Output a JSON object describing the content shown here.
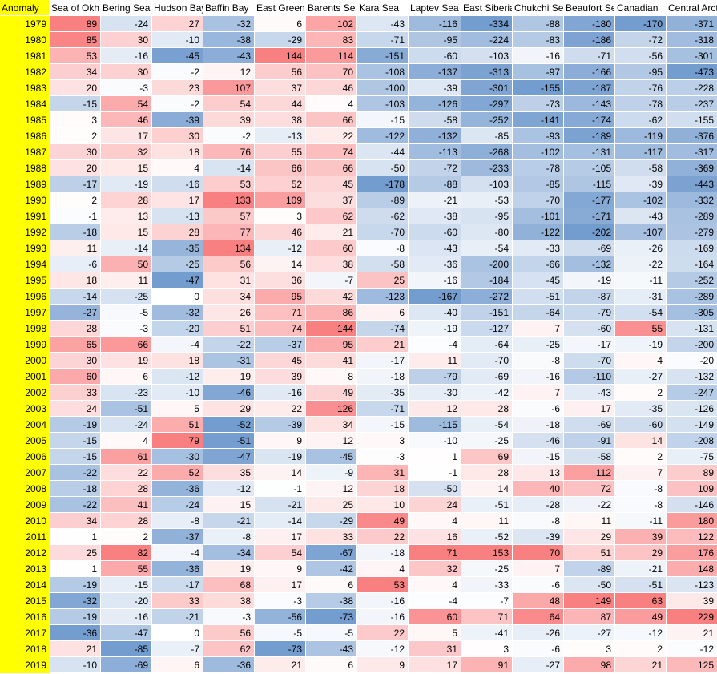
{
  "table": {
    "corner_label": "Anomaly",
    "columns": [
      "Sea of Okh",
      "Bering Sea",
      "Hudson Bay",
      "Baffin Bay",
      "East Greenland",
      "Barents Sea",
      "Kara Sea",
      "Laptev Sea",
      "East Siberian",
      "Chukchi Sea",
      "Beaufort Sea",
      "Canadian",
      "Central Arctic"
    ],
    "years": [
      "1979",
      "1980",
      "1981",
      "1982",
      "1983",
      "1984",
      "1985",
      "1986",
      "1987",
      "1988",
      "1989",
      "1990",
      "1991",
      "1992",
      "1993",
      "1994",
      "1995",
      "1996",
      "1997",
      "1998",
      "1999",
      "2000",
      "2001",
      "2002",
      "2003",
      "2004",
      "2005",
      "2006",
      "2007",
      "2008",
      "2009",
      "2010",
      "2011",
      "2012",
      "2013",
      "2014",
      "2015",
      "2016",
      "2017",
      "2018",
      "2019"
    ],
    "rows": [
      [
        89,
        -24,
        27,
        -32,
        6,
        102,
        -43,
        -116,
        -334,
        -88,
        -180,
        -170,
        -371
      ],
      [
        85,
        30,
        -10,
        -38,
        -29,
        83,
        -71,
        -95,
        -224,
        -83,
        -186,
        -72,
        -318
      ],
      [
        53,
        -16,
        -45,
        -43,
        144,
        114,
        -151,
        -60,
        -103,
        -16,
        -71,
        -56,
        -301
      ],
      [
        34,
        30,
        -2,
        12,
        56,
        70,
        -108,
        -137,
        -313,
        -97,
        -166,
        -95,
        -473
      ],
      [
        20,
        -3,
        23,
        107,
        37,
        46,
        -100,
        -39,
        -301,
        -155,
        -187,
        -76,
        -228
      ],
      [
        -15,
        54,
        -2,
        54,
        44,
        4,
        -103,
        -126,
        -297,
        -73,
        -143,
        -78,
        -237
      ],
      [
        3,
        46,
        -39,
        39,
        38,
        66,
        -15,
        -58,
        -252,
        -141,
        -174,
        -62,
        -155
      ],
      [
        2,
        17,
        30,
        -2,
        -13,
        22,
        -122,
        -132,
        -85,
        -93,
        -189,
        -119,
        -376
      ],
      [
        30,
        32,
        18,
        76,
        55,
        74,
        -44,
        -113,
        -268,
        -102,
        -131,
        -117,
        -317
      ],
      [
        20,
        15,
        4,
        -14,
        66,
        66,
        -50,
        -72,
        -233,
        -78,
        -105,
        -58,
        -369
      ],
      [
        -17,
        -19,
        -16,
        53,
        52,
        45,
        -178,
        -88,
        -103,
        -85,
        -115,
        -39,
        -443
      ],
      [
        2,
        28,
        17,
        133,
        109,
        37,
        -89,
        -21,
        -53,
        -70,
        -177,
        -102,
        -332
      ],
      [
        -1,
        13,
        -13,
        57,
        3,
        62,
        -62,
        -38,
        -95,
        -101,
        -171,
        -43,
        -289
      ],
      [
        -18,
        15,
        28,
        77,
        46,
        21,
        -70,
        -60,
        -80,
        -122,
        -202,
        -107,
        -279
      ],
      [
        11,
        -14,
        -35,
        134,
        -12,
        60,
        -8,
        -43,
        -54,
        -33,
        -69,
        -26,
        -169
      ],
      [
        -6,
        50,
        -25,
        56,
        14,
        38,
        -58,
        -36,
        -200,
        -66,
        -132,
        -22,
        -164
      ],
      [
        18,
        11,
        -47,
        31,
        36,
        -7,
        25,
        -16,
        -184,
        -45,
        -19,
        -11,
        -252
      ],
      [
        -14,
        -25,
        0,
        34,
        95,
        42,
        -123,
        -167,
        -272,
        -51,
        -87,
        -31,
        -289
      ],
      [
        -27,
        -5,
        -32,
        26,
        71,
        86,
        6,
        -40,
        -151,
        -64,
        -79,
        -54,
        -305
      ],
      [
        28,
        -3,
        -20,
        51,
        74,
        144,
        -74,
        -19,
        -127,
        7,
        -60,
        55,
        -131
      ],
      [
        65,
        66,
        -4,
        -22,
        -37,
        95,
        21,
        -4,
        -64,
        -25,
        -17,
        -19,
        -200
      ],
      [
        30,
        19,
        18,
        -31,
        45,
        41,
        -17,
        11,
        -70,
        -8,
        -70,
        4,
        -20
      ],
      [
        60,
        6,
        -12,
        19,
        39,
        8,
        -18,
        -79,
        -69,
        -16,
        -110,
        -27,
        -132
      ],
      [
        33,
        -23,
        -10,
        -46,
        -16,
        49,
        -35,
        -30,
        -42,
        7,
        -43,
        2,
        -247
      ],
      [
        24,
        -51,
        5,
        29,
        22,
        126,
        -71,
        12,
        28,
        -6,
        17,
        -35,
        -126
      ],
      [
        -19,
        -24,
        51,
        -52,
        -39,
        34,
        -15,
        -115,
        -54,
        -18,
        -69,
        -60,
        -149
      ],
      [
        -15,
        4,
        79,
        -51,
        9,
        12,
        3,
        -10,
        -25,
        -46,
        -91,
        14,
        -208
      ],
      [
        -15,
        61,
        -30,
        -47,
        -19,
        -45,
        -3,
        1,
        69,
        -15,
        -58,
        2,
        -75
      ],
      [
        -22,
        22,
        52,
        35,
        14,
        -9,
        31,
        -1,
        28,
        13,
        112,
        7,
        89
      ],
      [
        -18,
        28,
        -36,
        -12,
        -1,
        12,
        18,
        -50,
        14,
        40,
        72,
        -8,
        109
      ],
      [
        -22,
        41,
        -24,
        15,
        -21,
        25,
        10,
        24,
        -51,
        -28,
        -22,
        -8,
        -146
      ],
      [
        34,
        28,
        -8,
        -21,
        -14,
        -29,
        49,
        4,
        11,
        -8,
        11,
        -11,
        180
      ],
      [
        1,
        2,
        -37,
        -8,
        17,
        33,
        22,
        16,
        -52,
        -39,
        29,
        39,
        122
      ],
      [
        25,
        82,
        -4,
        -34,
        54,
        -67,
        -18,
        71,
        153,
        70,
        51,
        29,
        176
      ],
      [
        1,
        55,
        -36,
        19,
        9,
        -42,
        4,
        32,
        -25,
        7,
        -89,
        -21,
        148
      ],
      [
        -19,
        -15,
        -17,
        68,
        17,
        6,
        53,
        4,
        -33,
        -6,
        -50,
        -51,
        -123
      ],
      [
        -32,
        -20,
        33,
        38,
        -3,
        -38,
        -16,
        -4,
        -7,
        48,
        149,
        63,
        39
      ],
      [
        -19,
        -16,
        -21,
        -3,
        -56,
        -73,
        -16,
        60,
        71,
        64,
        87,
        49,
        229
      ],
      [
        -36,
        -47,
        0,
        56,
        -5,
        -5,
        22,
        5,
        -41,
        -26,
        -27,
        -12,
        21
      ],
      [
        21,
        -85,
        -7,
        62,
        -73,
        -43,
        -12,
        31,
        3,
        -6,
        3,
        2,
        -12
      ],
      [
        -10,
        -69,
        6,
        -36,
        21,
        6,
        9,
        17,
        91,
        -27,
        98,
        21,
        125
      ]
    ]
  },
  "colors": {
    "year_bg": "#ffff00",
    "positive": "#f8696b",
    "negative": "#5a8ac6",
    "neutral": "#ffffff"
  }
}
